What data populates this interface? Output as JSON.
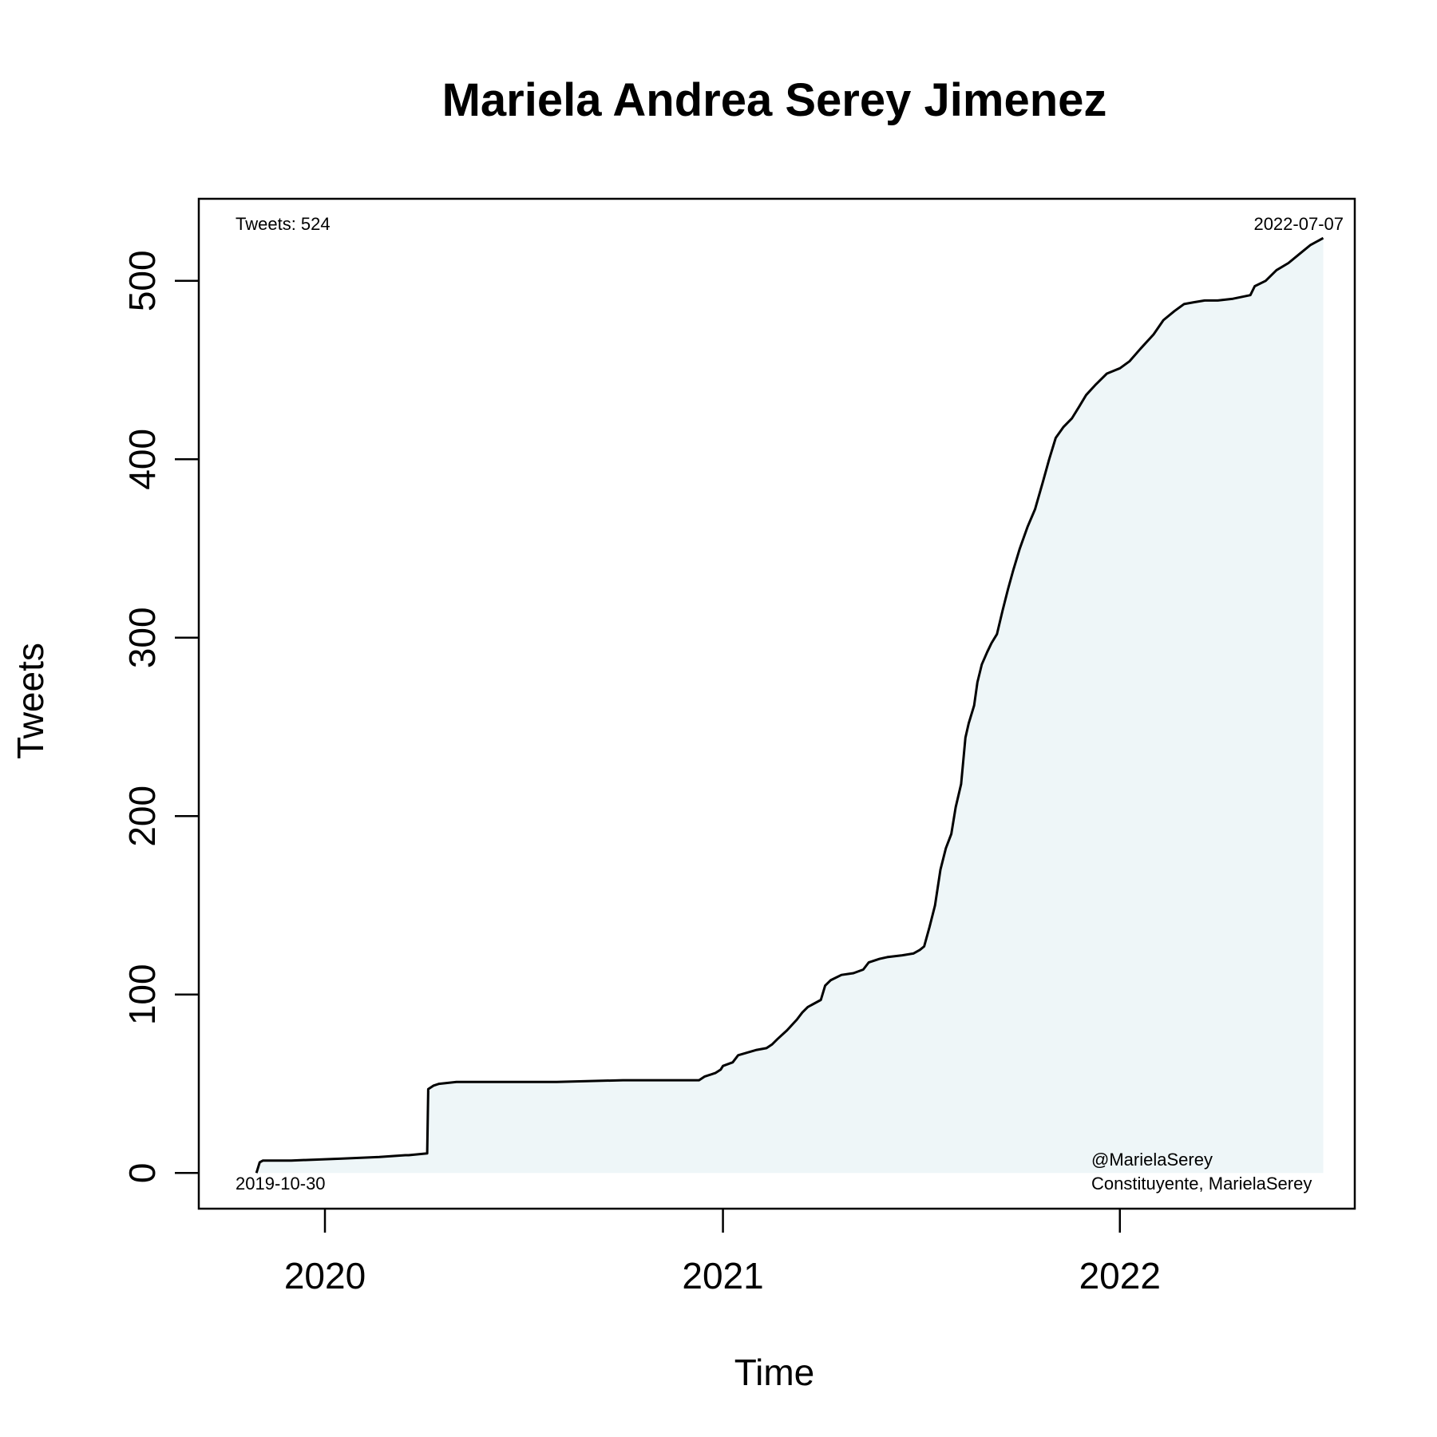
{
  "chart_data": {
    "type": "area",
    "title": "Mariela Andrea Serey Jimenez",
    "xlabel": "Time",
    "ylabel": "Tweets",
    "x_ticks": [
      "2020",
      "2021",
      "2022"
    ],
    "y_ticks": [
      0,
      100,
      200,
      300,
      400,
      500
    ],
    "xlim": [
      "2019-09-07",
      "2022-08-05"
    ],
    "ylim": [
      -20,
      546
    ],
    "grid": false,
    "fill_color": "#eef6f8",
    "line_color": "#000000",
    "annotations": {
      "top_left": "Tweets: 524",
      "top_right": "2022-07-07",
      "bottom_left": "2019-10-30",
      "bottom_right_line1": "@MarielaSerey",
      "bottom_right_line2": "Constituyente, MarielaSerey"
    },
    "series": [
      {
        "x": [
          "2019-10-30",
          "2019-11-02",
          "2019-11-05",
          "2019-12-01",
          "2020-01-15",
          "2020-02-20",
          "2020-03-15",
          "2020-03-18",
          "2020-04-04",
          "2020-04-05",
          "2020-04-10",
          "2020-04-15",
          "2020-05-01",
          "2020-06-01",
          "2020-08-01",
          "2020-10-01",
          "2020-12-01",
          "2020-12-10",
          "2020-12-15",
          "2020-12-25",
          "2020-12-30",
          "2021-01-01",
          "2021-01-10",
          "2021-01-15",
          "2021-02-01",
          "2021-02-10",
          "2021-02-15",
          "2021-02-20",
          "2021-03-01",
          "2021-03-10",
          "2021-03-15",
          "2021-03-20",
          "2021-04-01",
          "2021-04-05",
          "2021-04-10",
          "2021-04-20",
          "2021-05-01",
          "2021-05-10",
          "2021-05-15",
          "2021-05-25",
          "2021-06-01",
          "2021-06-15",
          "2021-06-25",
          "2021-07-01",
          "2021-07-05",
          "2021-07-10",
          "2021-07-15",
          "2021-07-20",
          "2021-07-25",
          "2021-07-30",
          "2021-08-03",
          "2021-08-08",
          "2021-08-12",
          "2021-08-15",
          "2021-08-20",
          "2021-08-23",
          "2021-08-27",
          "2021-09-01",
          "2021-09-05",
          "2021-09-10",
          "2021-09-15",
          "2021-09-20",
          "2021-09-25",
          "2021-10-01",
          "2021-10-08",
          "2021-10-15",
          "2021-10-22",
          "2021-10-28",
          "2021-11-03",
          "2021-11-10",
          "2021-11-18",
          "2021-11-25",
          "2021-12-01",
          "2021-12-10",
          "2021-12-20",
          "2022-01-01",
          "2022-01-10",
          "2022-01-20",
          "2022-02-01",
          "2022-02-10",
          "2022-02-20",
          "2022-03-01",
          "2022-03-10",
          "2022-03-20",
          "2022-04-01",
          "2022-04-15",
          "2022-05-01",
          "2022-05-05",
          "2022-05-15",
          "2022-05-25",
          "2022-06-05",
          "2022-06-15",
          "2022-06-25",
          "2022-07-07"
        ],
        "y": [
          0,
          6,
          7,
          7,
          8,
          9,
          10,
          10,
          11,
          47,
          49,
          50,
          51,
          51,
          51,
          52,
          52,
          52,
          54,
          56,
          58,
          60,
          62,
          66,
          69,
          70,
          72,
          75,
          80,
          86,
          90,
          93,
          97,
          105,
          108,
          111,
          112,
          114,
          118,
          120,
          121,
          122,
          123,
          125,
          127,
          138,
          150,
          170,
          182,
          190,
          205,
          218,
          244,
          252,
          262,
          275,
          285,
          292,
          297,
          302,
          315,
          327,
          338,
          350,
          362,
          372,
          387,
          400,
          412,
          418,
          423,
          430,
          436,
          442,
          448,
          451,
          455,
          462,
          470,
          478,
          483,
          487,
          488,
          489,
          489,
          490,
          492,
          497,
          500,
          506,
          510,
          515,
          520,
          524
        ]
      }
    ]
  }
}
